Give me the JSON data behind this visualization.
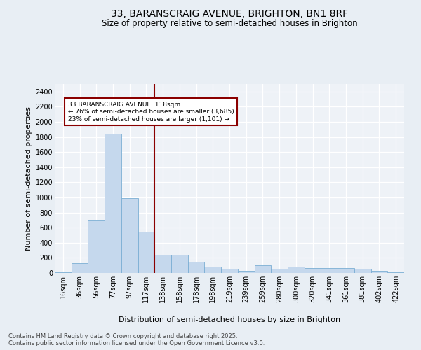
{
  "title1": "33, BARANSCRAIG AVENUE, BRIGHTON, BN1 8RF",
  "title2": "Size of property relative to semi-detached houses in Brighton",
  "xlabel": "Distribution of semi-detached houses by size in Brighton",
  "ylabel": "Number of semi-detached properties",
  "footnote": "Contains HM Land Registry data © Crown copyright and database right 2025.\nContains public sector information licensed under the Open Government Licence v3.0.",
  "bar_labels": [
    "16sqm",
    "36sqm",
    "56sqm",
    "77sqm",
    "97sqm",
    "117sqm",
    "138sqm",
    "158sqm",
    "178sqm",
    "198sqm",
    "219sqm",
    "239sqm",
    "259sqm",
    "280sqm",
    "300sqm",
    "320sqm",
    "341sqm",
    "361sqm",
    "381sqm",
    "402sqm",
    "422sqm"
  ],
  "bar_values": [
    10,
    130,
    700,
    1840,
    990,
    550,
    240,
    240,
    150,
    85,
    55,
    30,
    100,
    55,
    85,
    65,
    65,
    65,
    55,
    30,
    10
  ],
  "bar_color": "#c5d8ed",
  "bar_edge_color": "#7bafd4",
  "vline_index": 5,
  "vline_color": "#8b0000",
  "annotation_text": "33 BARANSCRAIG AVENUE: 118sqm\n← 76% of semi-detached houses are smaller (3,685)\n23% of semi-detached houses are larger (1,101) →",
  "annotation_box_color": "white",
  "annotation_box_edge": "#8b0000",
  "ylim": [
    0,
    2500
  ],
  "yticks": [
    0,
    200,
    400,
    600,
    800,
    1000,
    1200,
    1400,
    1600,
    1800,
    2000,
    2200,
    2400
  ],
  "bg_color": "#e8eef4",
  "plot_bg_color": "#eef2f7",
  "grid_color": "white",
  "title1_fontsize": 10,
  "title2_fontsize": 8.5,
  "ylabel_fontsize": 8,
  "xlabel_fontsize": 8,
  "tick_fontsize": 7,
  "annotation_fontsize": 6.5,
  "footnote_fontsize": 6
}
